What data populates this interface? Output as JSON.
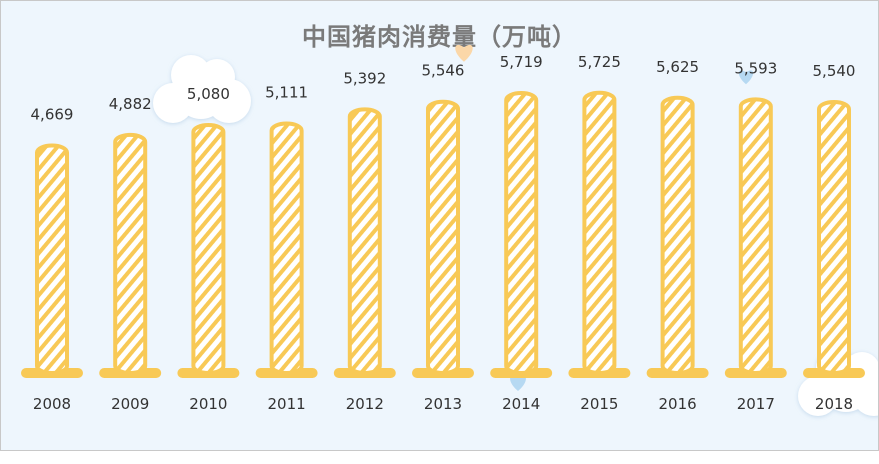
{
  "chart_data": {
    "type": "bar",
    "title": "中国猪肉消费量（万吨）",
    "categories": [
      "2008",
      "2009",
      "2010",
      "2011",
      "2012",
      "2013",
      "2014",
      "2015",
      "2016",
      "2017",
      "2018"
    ],
    "values": [
      4669,
      4882,
      5080,
      5111,
      5392,
      5546,
      5719,
      5725,
      5625,
      5593,
      5540
    ],
    "value_labels": [
      "4,669",
      "4,882",
      "5,080",
      "5,111",
      "5,392",
      "5,546",
      "5,719",
      "5,725",
      "5,625",
      "5,593",
      "5,540"
    ],
    "xlabel": "",
    "ylabel": "",
    "grid": false,
    "legend": "none",
    "colors": {
      "background": "#eef6fd",
      "bar_stroke": "#f8c956",
      "bar_stripe": "#f8c956",
      "base": "#f8c956",
      "text": "#333333",
      "title": "#7a7a7a",
      "cloud": "#ffffff",
      "heart_orange": "#fbd7a8",
      "heart_blue": "#b6d9f2"
    }
  }
}
